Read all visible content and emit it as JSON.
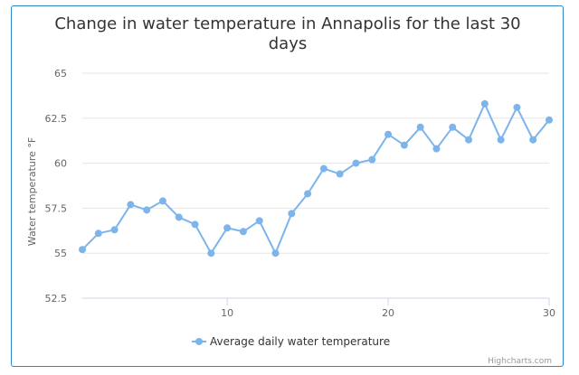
{
  "chart_data": {
    "type": "line",
    "title": "Change in water temperature in Annapolis for the last 30 days",
    "title_lines": [
      "Change in water temperature in Annapolis for the last 30",
      "days"
    ],
    "xlabel": "",
    "ylabel": "Water temperature °F",
    "xlim": [
      1,
      30
    ],
    "ylim": [
      52.5,
      65
    ],
    "x_ticks": [
      10,
      20,
      30
    ],
    "y_ticks": [
      52.5,
      55,
      57.5,
      60,
      62.5,
      65
    ],
    "y_tick_labels": [
      "52.5",
      "55",
      "57.5",
      "60",
      "62.5",
      "65"
    ],
    "grid": true,
    "legend_position": "bottom-center",
    "series": [
      {
        "name": "Average daily water temperature",
        "color": "#7cb5ec",
        "x": [
          1,
          2,
          3,
          4,
          5,
          6,
          7,
          8,
          9,
          10,
          11,
          12,
          13,
          14,
          15,
          16,
          17,
          18,
          19,
          20,
          21,
          22,
          23,
          24,
          25,
          26,
          27,
          28,
          29,
          30
        ],
        "values": [
          55.2,
          56.1,
          56.3,
          57.7,
          57.4,
          57.9,
          57.0,
          56.6,
          55.0,
          56.4,
          56.2,
          56.8,
          55.0,
          57.2,
          58.3,
          59.7,
          59.4,
          60.0,
          60.2,
          61.6,
          61.0,
          62.0,
          60.8,
          62.0,
          61.3,
          63.3,
          61.3,
          63.1,
          61.3,
          62.4
        ]
      }
    ]
  },
  "credits": "Highcharts.com"
}
